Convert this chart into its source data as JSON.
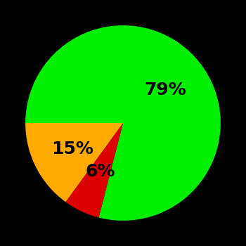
{
  "slices": [
    79,
    6,
    15
  ],
  "colors": [
    "#00ee00",
    "#dd0000",
    "#ffaa00"
  ],
  "labels": [
    "79%",
    "6%",
    "15%"
  ],
  "label_radii": [
    0.55,
    0.55,
    0.58
  ],
  "background_color": "#000000",
  "text_color": "#000000",
  "startangle": 180,
  "counterclock": false,
  "fontsize": 18,
  "figsize": [
    3.5,
    3.5
  ],
  "dpi": 100
}
